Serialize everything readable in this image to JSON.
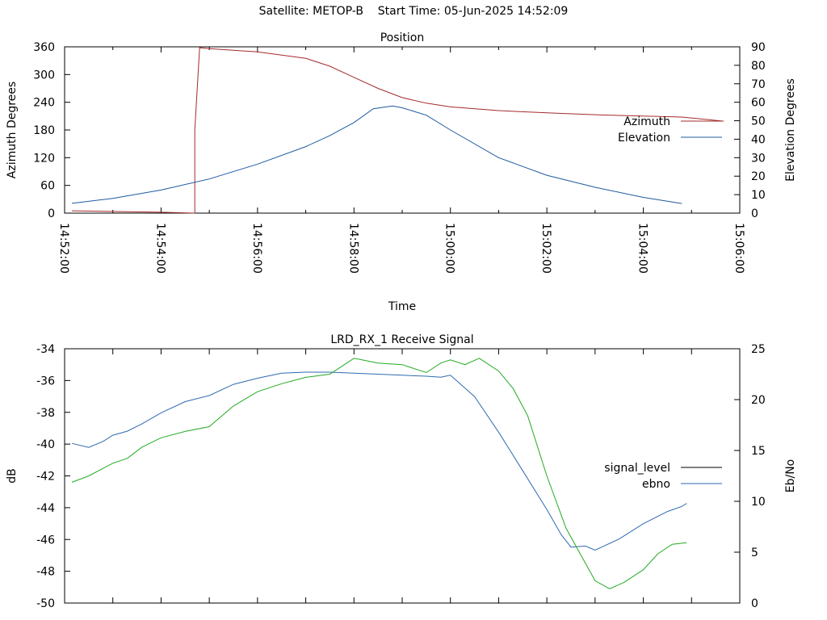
{
  "header": {
    "title": "Satellite: METOP-B    Start Time: 05-Jun-2025 14:52:09"
  },
  "chart_data": [
    {
      "type": "line",
      "title": "Position",
      "xlabel": "Time",
      "ylabel": "Azimuth Degrees",
      "y2label": "Elevation Degrees",
      "x_ticks": [
        "14:52:00",
        "14:54:00",
        "14:56:00",
        "14:58:00",
        "15:00:00",
        "15:02:00",
        "15:04:00",
        "15:06:00"
      ],
      "ylim": [
        0,
        360
      ],
      "y_ticks": [
        "0",
        "60",
        "120",
        "180",
        "240",
        "300",
        "360"
      ],
      "y2lim": [
        0,
        90
      ],
      "y2_ticks": [
        "0",
        "10",
        "20",
        "30",
        "40",
        "50",
        "60",
        "70",
        "80",
        "90"
      ],
      "legend_position": "right",
      "grid": false,
      "series": [
        {
          "name": "Azimuth",
          "axis": "y",
          "color": "#a52a2a",
          "time": [
            "14:52:09",
            "14:54:00",
            "14:54:42",
            "14:54:42",
            "14:54:48",
            "14:55:00",
            "14:56:00",
            "14:57:00",
            "14:57:30",
            "14:58:00",
            "14:58:30",
            "14:59:00",
            "14:59:30",
            "15:00:00",
            "15:01:00",
            "15:02:00",
            "15:03:00",
            "15:04:00",
            "15:04:48",
            "15:05:40"
          ],
          "values": [
            5,
            2,
            0,
            180,
            358,
            356,
            349,
            335,
            318,
            294,
            270,
            250,
            238,
            230,
            222,
            217,
            213,
            210,
            208,
            199
          ]
        },
        {
          "name": "Elevation",
          "axis": "y2",
          "color": "#1e5aa0",
          "time": [
            "14:52:09",
            "14:53:00",
            "14:54:00",
            "14:55:00",
            "14:56:00",
            "14:57:00",
            "14:57:30",
            "14:58:00",
            "14:58:24",
            "14:58:48",
            "14:59:00",
            "14:59:30",
            "15:00:00",
            "15:01:00",
            "15:02:00",
            "15:03:00",
            "15:04:00",
            "15:04:48"
          ],
          "values": [
            5.3,
            8,
            12.5,
            18.5,
            26.5,
            36,
            42,
            49,
            56.5,
            58,
            57,
            53,
            45,
            30,
            20.5,
            14,
            8.5,
            5.2
          ]
        }
      ]
    },
    {
      "type": "line",
      "title": "LRD_RX_1 Receive Signal",
      "xlabel": "",
      "ylabel": "dB",
      "y2label": "Eb/No",
      "ylim": [
        -50,
        -34
      ],
      "y_ticks": [
        "-50",
        "-48",
        "-46",
        "-44",
        "-42",
        "-40",
        "-38",
        "-36",
        "-34"
      ],
      "y2lim": [
        0,
        25
      ],
      "y2_ticks": [
        "0",
        "5",
        "10",
        "15",
        "20",
        "25"
      ],
      "x_ticks_minutes": [
        0,
        1,
        2,
        3,
        4,
        5,
        6,
        7,
        8,
        9,
        10,
        11,
        12,
        13,
        14
      ],
      "legend_position": "right",
      "grid": false,
      "series": [
        {
          "name": "signal_level",
          "axis": "y",
          "color": "#000000",
          "minutes": [],
          "values": []
        },
        {
          "name": "ebno",
          "axis": "y2",
          "color": "#2e6ab0",
          "minutes": [
            0.15,
            0.5,
            0.8,
            1.0,
            1.3,
            1.6,
            2.0,
            2.5,
            3.0,
            3.5,
            4.0,
            4.5,
            5.0,
            5.5,
            6.0,
            6.5,
            7.0,
            7.5,
            7.8,
            8.0,
            8.5,
            9.0,
            9.5,
            10.0,
            10.3,
            10.5,
            10.8,
            11.0,
            11.5,
            12.0,
            12.5,
            12.8,
            12.9
          ],
          "values": [
            15.7,
            15.3,
            15.9,
            16.5,
            16.9,
            17.6,
            18.7,
            19.8,
            20.4,
            21.5,
            22.1,
            22.6,
            22.7,
            22.7,
            22.6,
            22.5,
            22.4,
            22.3,
            22.2,
            22.4,
            20.3,
            16.8,
            13.0,
            9.2,
            6.7,
            5.5,
            5.6,
            5.2,
            6.3,
            7.8,
            9.0,
            9.5,
            9.8
          ]
        },
        {
          "name": "",
          "axis": "y",
          "color": "#22aa22",
          "minutes": [
            0.15,
            0.5,
            1.0,
            1.3,
            1.6,
            2.0,
            2.5,
            3.0,
            3.5,
            4.0,
            4.5,
            5.0,
            5.5,
            6.0,
            6.5,
            7.0,
            7.5,
            7.8,
            8.0,
            8.3,
            8.6,
            9.0,
            9.3,
            9.6,
            10.0,
            10.4,
            10.8,
            11.0,
            11.3,
            11.6,
            12.0,
            12.3,
            12.6,
            12.9
          ],
          "values": [
            -42.4,
            -42.0,
            -41.2,
            -40.9,
            -40.2,
            -39.6,
            -39.2,
            -38.9,
            -37.6,
            -36.7,
            -36.2,
            -35.8,
            -35.6,
            -34.6,
            -34.9,
            -35.0,
            -35.5,
            -34.9,
            -34.7,
            -35.0,
            -34.6,
            -35.4,
            -36.5,
            -38.2,
            -42.0,
            -45.3,
            -47.5,
            -48.6,
            -49.1,
            -48.7,
            -47.9,
            -46.9,
            -46.3,
            -46.2
          ]
        }
      ]
    }
  ]
}
